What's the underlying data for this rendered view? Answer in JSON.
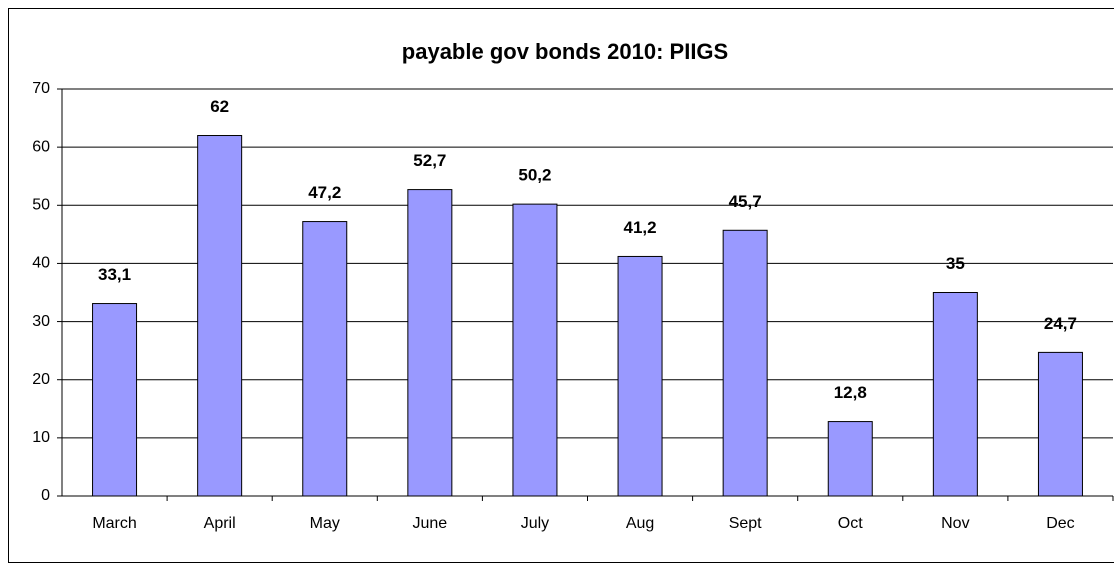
{
  "chart_data": {
    "type": "bar",
    "title": "payable gov bonds 2010: PIIGS",
    "categories": [
      "March",
      "April",
      "May",
      "June",
      "July",
      "Aug",
      "Sept",
      "Oct",
      "Nov",
      "Dec"
    ],
    "values": [
      33.1,
      62,
      47.2,
      52.7,
      50.2,
      41.2,
      45.7,
      12.8,
      35,
      24.7
    ],
    "value_labels": [
      "33,1",
      "62",
      "47,2",
      "52,7",
      "50,2",
      "41,2",
      "45,7",
      "12,8",
      "35",
      "24,7"
    ],
    "color": "#9999ff",
    "ylim": [
      0,
      70
    ],
    "yticks": [
      0,
      10,
      20,
      30,
      40,
      50,
      60,
      70
    ],
    "grid": true
  }
}
